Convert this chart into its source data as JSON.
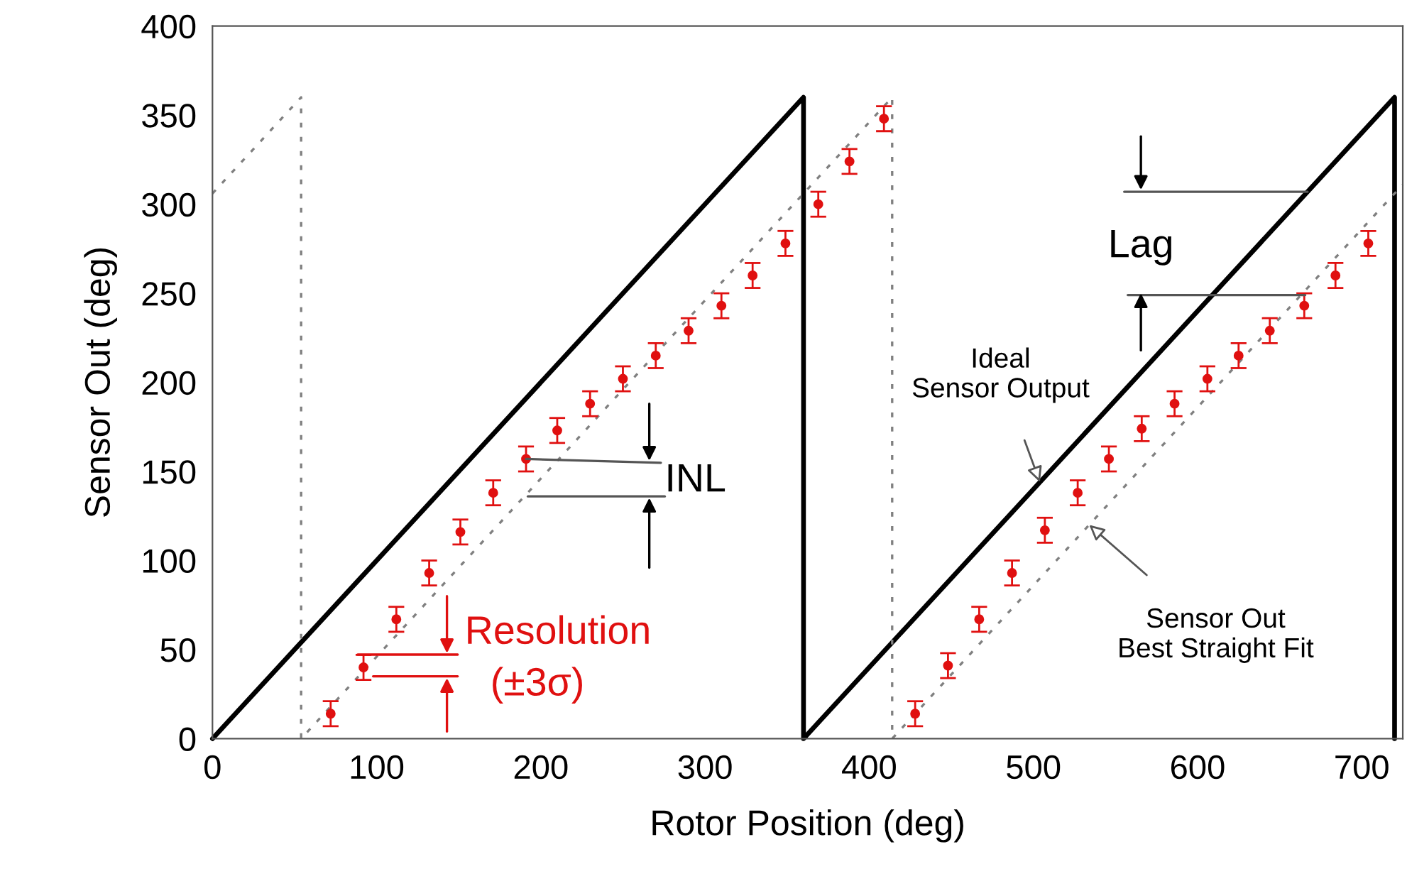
{
  "chart_data": {
    "type": "line",
    "xlabel": "Rotor Position (deg)",
    "ylabel": "Sensor Out (deg)",
    "xlim": [
      0,
      725
    ],
    "ylim": [
      0,
      400
    ],
    "xticks": [
      0,
      100,
      200,
      300,
      400,
      500,
      600,
      700
    ],
    "yticks": [
      0,
      50,
      100,
      150,
      200,
      250,
      300,
      350,
      400
    ],
    "grid": false,
    "legend": false,
    "series": [
      {
        "color": "#000000",
        "line_style": "solid",
        "marker": "none",
        "x": [
          0,
          360,
          360,
          720,
          720
        ],
        "values": [
          0,
          360,
          0,
          360,
          0
        ]
      },
      {
        "color": "#808080",
        "line_style": "dotted",
        "marker": "none",
        "x": [
          0,
          54,
          54,
          414,
          414,
          725
        ],
        "values": [
          306,
          360,
          0,
          360,
          0,
          311
        ]
      },
      {
        "type": "scatter",
        "color": "#e01010",
        "marker": "circle",
        "x": [
          72,
          92,
          112,
          132,
          151,
          171,
          191,
          210,
          230,
          250,
          270,
          290,
          310,
          329,
          349,
          369,
          388,
          409,
          428,
          448,
          467,
          487,
          507,
          527,
          546,
          566,
          586,
          606,
          625,
          644,
          665,
          684,
          704
        ],
        "values": [
          14,
          40,
          67,
          93,
          116,
          138,
          157,
          173,
          188,
          202,
          215,
          229,
          243,
          260,
          278,
          300,
          324,
          348,
          14,
          41,
          67,
          93,
          117,
          138,
          157,
          174,
          188,
          202,
          215,
          229,
          243,
          260,
          278
        ],
        "errors": [
          7,
          7,
          7,
          7,
          7,
          7,
          7,
          7,
          7,
          7,
          7,
          7,
          7,
          7,
          7,
          7,
          7,
          7,
          7,
          7,
          7,
          7,
          7,
          7,
          7,
          7,
          7,
          7,
          7,
          7,
          7,
          7,
          7
        ]
      }
    ],
    "annotations": [
      {
        "text": "INL",
        "x": 191,
        "y": 157
      },
      "Resolution",
      "(±3σ)",
      {
        "text": "Lag",
        "x": 667,
        "y": 307
      },
      {
        "text": "Ideal\nSensor Output",
        "x": 504,
        "y": 144
      },
      {
        "text": "Sensor Out\nBest Straight Fit",
        "x": 534,
        "y": 120
      }
    ]
  }
}
